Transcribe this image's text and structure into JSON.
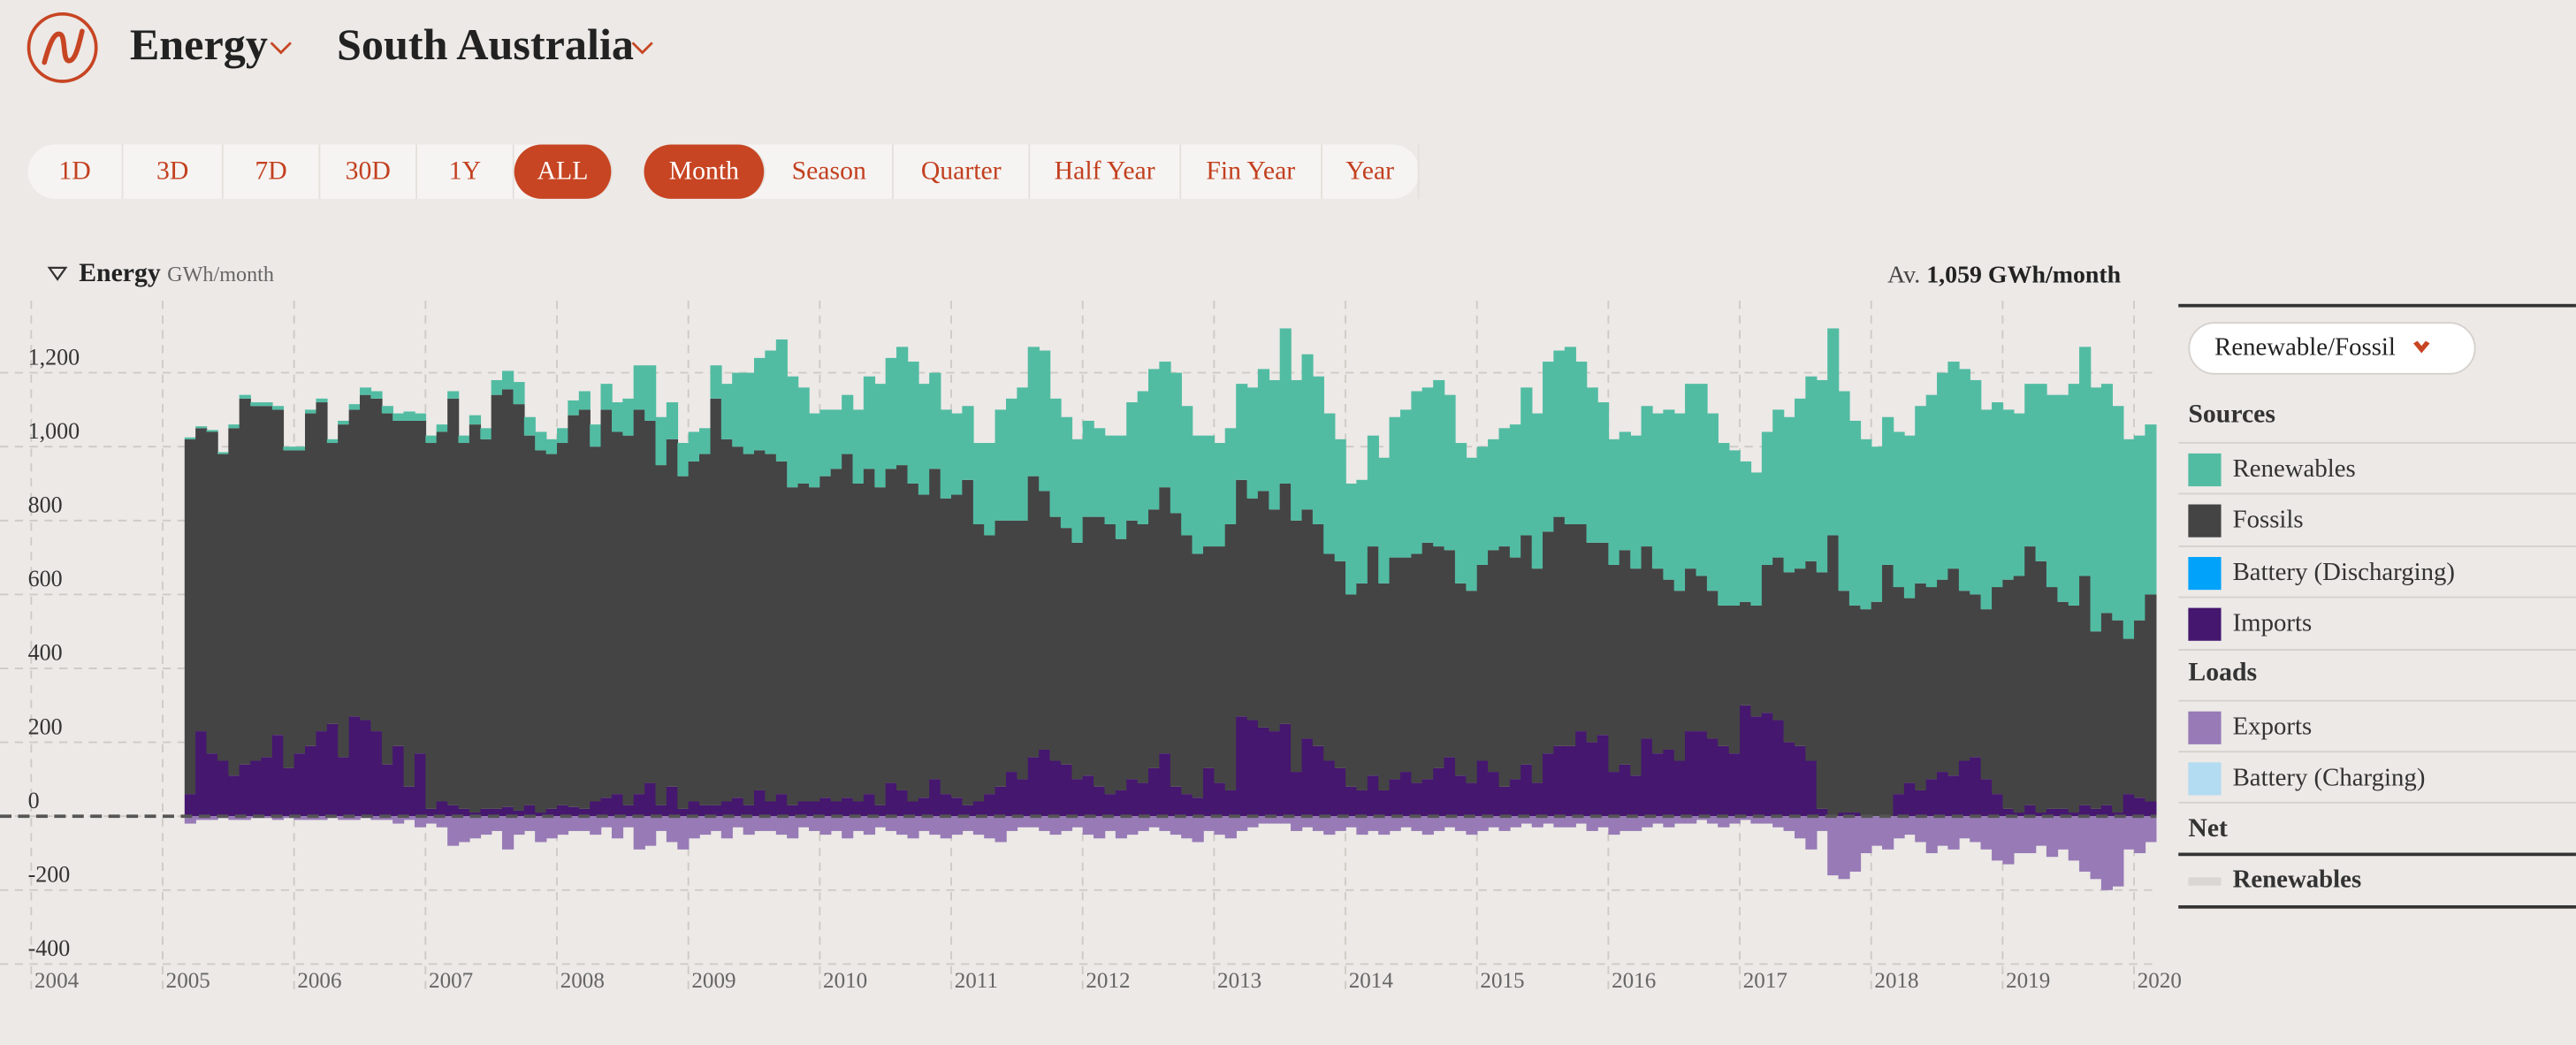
{
  "header": {
    "menu": "Energy",
    "region": "South Australia"
  },
  "ranges": {
    "options": [
      "1D",
      "3D",
      "7D",
      "30D",
      "1Y",
      "ALL"
    ],
    "active": "ALL"
  },
  "intervals": {
    "options": [
      "Month",
      "Season",
      "Quarter",
      "Half Year",
      "Fin Year",
      "Year"
    ],
    "active": "Month"
  },
  "chart_data": {
    "type": "bar",
    "stacked": true,
    "title": "Energy",
    "unit": "GWh/month",
    "average_label": "Av.",
    "average": "1,059 GWh/month",
    "x": [
      2005.167,
      2005.25,
      2005.333,
      2005.417,
      2005.5,
      2005.583,
      2005.667,
      2005.75,
      2005.833,
      2005.917,
      2006,
      2006.083,
      2006.167,
      2006.25,
      2006.333,
      2006.417,
      2006.5,
      2006.583,
      2006.667,
      2006.75,
      2006.833,
      2006.917,
      2007,
      2007.083,
      2007.167,
      2007.25,
      2007.333,
      2007.417,
      2007.5,
      2007.583,
      2007.667,
      2007.75,
      2007.833,
      2007.917,
      2008,
      2008.083,
      2008.167,
      2008.25,
      2008.333,
      2008.417,
      2008.5,
      2008.583,
      2008.667,
      2008.75,
      2008.833,
      2008.917,
      2009,
      2009.083,
      2009.167,
      2009.25,
      2009.333,
      2009.417,
      2009.5,
      2009.583,
      2009.667,
      2009.75,
      2009.833,
      2009.917,
      2010,
      2010.083,
      2010.167,
      2010.25,
      2010.333,
      2010.417,
      2010.5,
      2010.583,
      2010.667,
      2010.75,
      2010.833,
      2010.917,
      2011,
      2011.083,
      2011.167,
      2011.25,
      2011.333,
      2011.417,
      2011.5,
      2011.583,
      2011.667,
      2011.75,
      2011.833,
      2011.917,
      2012,
      2012.083,
      2012.167,
      2012.25,
      2012.333,
      2012.417,
      2012.5,
      2012.583,
      2012.667,
      2012.75,
      2012.833,
      2012.917,
      2013,
      2013.083,
      2013.167,
      2013.25,
      2013.333,
      2013.417,
      2013.5,
      2013.583,
      2013.667,
      2013.75,
      2013.833,
      2013.917,
      2014,
      2014.083,
      2014.167,
      2014.25,
      2014.333,
      2014.417,
      2014.5,
      2014.583,
      2014.667,
      2014.75,
      2014.833,
      2014.917,
      2015,
      2015.083,
      2015.167,
      2015.25,
      2015.333,
      2015.417,
      2015.5,
      2015.583,
      2015.667,
      2015.75,
      2015.833,
      2015.917,
      2016,
      2016.083,
      2016.167,
      2016.25,
      2016.333,
      2016.417,
      2016.5,
      2016.583,
      2016.667,
      2016.75,
      2016.833,
      2016.917,
      2017,
      2017.083,
      2017.167,
      2017.25,
      2017.333,
      2017.417,
      2017.5,
      2017.583,
      2017.667,
      2017.75,
      2017.833,
      2017.917,
      2018,
      2018.083,
      2018.167,
      2018.25,
      2018.333,
      2018.417,
      2018.5,
      2018.583,
      2018.667,
      2018.75,
      2018.833,
      2018.917,
      2019,
      2019.083,
      2019.167,
      2019.25,
      2019.333,
      2019.417,
      2019.5,
      2019.583,
      2019.667,
      2019.75,
      2019.833,
      2019.917,
      2020,
      2020.083
    ],
    "xlim": [
      2003.99,
      2020.17
    ],
    "xticks": [
      2004,
      2005,
      2006,
      2007,
      2008,
      2009,
      2010,
      2011,
      2012,
      2013,
      2014,
      2015,
      2016,
      2017,
      2018,
      2019,
      2020
    ],
    "ylim": [
      -410,
      1395
    ],
    "yticks": [
      -400,
      -200,
      0,
      200,
      400,
      600,
      800,
      {
        "value": 1000,
        "label": "1,000"
      },
      {
        "value": 1200,
        "label": "1,200"
      }
    ],
    "grid": true,
    "series": [
      {
        "name": "Imports",
        "color": "#45176f",
        "values": [
          60,
          230,
          170,
          150,
          110,
          140,
          150,
          160,
          220,
          130,
          170,
          190,
          230,
          250,
          160,
          270,
          260,
          230,
          140,
          190,
          80,
          170,
          20,
          40,
          30,
          20,
          10,
          20,
          20,
          25,
          15,
          30,
          10,
          20,
          30,
          25,
          20,
          40,
          50,
          60,
          30,
          60,
          90,
          30,
          80,
          20,
          40,
          30,
          30,
          40,
          50,
          30,
          70,
          40,
          60,
          30,
          40,
          40,
          50,
          40,
          50,
          40,
          60,
          30,
          90,
          70,
          40,
          50,
          100,
          60,
          50,
          30,
          40,
          60,
          80,
          120,
          100,
          160,
          180,
          150,
          140,
          100,
          110,
          80,
          60,
          70,
          100,
          90,
          130,
          170,
          80,
          60,
          50,
          130,
          90,
          70,
          270,
          260,
          240,
          230,
          250,
          120,
          210,
          190,
          150,
          130,
          80,
          70,
          110,
          70,
          100,
          120,
          90,
          100,
          130,
          160,
          110,
          90,
          150,
          120,
          80,
          100,
          140,
          90,
          170,
          190,
          190,
          230,
          200,
          220,
          120,
          140,
          110,
          210,
          170,
          180,
          150,
          230,
          230,
          210,
          190,
          170,
          300,
          270,
          280,
          260,
          200,
          190,
          150,
          20,
          0,
          10,
          10,
          0,
          0,
          0,
          60,
          90,
          70,
          100,
          120,
          110,
          150,
          160,
          100,
          60,
          20,
          10,
          30,
          10,
          20,
          20,
          10,
          30,
          20,
          30,
          10,
          60,
          50,
          40
        ]
      },
      {
        "name": "Fossils",
        "color": "#444444",
        "values": [
          960,
          820,
          870,
          830,
          940,
          990,
          960,
          950,
          880,
          860,
          820,
          900,
          890,
          760,
          900,
          830,
          880,
          900,
          950,
          880,
          990,
          900,
          990,
          1000,
          1100,
          990,
          1050,
          1000,
          1120,
          1130,
          1100,
          1000,
          980,
          960,
          980,
          1060,
          1080,
          960,
          1050,
          980,
          1000,
          1040,
          980,
          920,
          940,
          900,
          920,
          950,
          1100,
          980,
          950,
          950,
          920,
          940,
          900,
          860,
          860,
          850,
          870,
          900,
          930,
          860,
          880,
          860,
          850,
          880,
          860,
          820,
          840,
          800,
          820,
          880,
          750,
          700,
          720,
          680,
          700,
          760,
          700,
          660,
          640,
          640,
          700,
          730,
          730,
          680,
          700,
          700,
          700,
          720,
          740,
          700,
          660,
          600,
          640,
          720,
          640,
          600,
          640,
          600,
          650,
          680,
          620,
          600,
          560,
          560,
          520,
          560,
          620,
          560,
          600,
          580,
          620,
          640,
          600,
          560,
          520,
          520,
          530,
          600,
          650,
          600,
          620,
          580,
          600,
          620,
          600,
          560,
          540,
          520,
          560,
          580,
          560,
          520,
          500,
          460,
          460,
          440,
          420,
          400,
          380,
          400,
          280,
          300,
          400,
          440,
          460,
          480,
          540,
          640,
          760,
          600,
          560,
          560,
          580,
          680,
          560,
          500,
          560,
          520,
          520,
          560,
          460,
          440,
          460,
          560,
          620,
          640,
          700,
          680,
          600,
          560,
          560,
          620,
          480,
          520,
          520,
          420,
          480,
          560
        ]
      },
      {
        "name": "Renewables",
        "color": "#52bca3",
        "values": [
          5,
          5,
          5,
          5,
          10,
          10,
          10,
          10,
          10,
          10,
          10,
          10,
          10,
          10,
          10,
          15,
          20,
          20,
          20,
          20,
          25,
          20,
          20,
          20,
          20,
          20,
          25,
          30,
          40,
          50,
          60,
          50,
          50,
          40,
          40,
          40,
          50,
          60,
          70,
          80,
          100,
          120,
          150,
          130,
          100,
          90,
          80,
          70,
          90,
          150,
          200,
          220,
          250,
          280,
          330,
          300,
          260,
          200,
          180,
          160,
          160,
          200,
          250,
          280,
          300,
          320,
          330,
          300,
          260,
          240,
          220,
          200,
          220,
          250,
          300,
          330,
          360,
          350,
          380,
          320,
          300,
          280,
          260,
          240,
          240,
          280,
          320,
          360,
          380,
          340,
          380,
          350,
          320,
          300,
          280,
          260,
          260,
          300,
          330,
          350,
          420,
          380,
          420,
          400,
          380,
          330,
          300,
          280,
          300,
          340,
          380,
          400,
          440,
          420,
          450,
          420,
          380,
          360,
          320,
          300,
          320,
          360,
          400,
          420,
          460,
          450,
          480,
          440,
          420,
          380,
          340,
          320,
          360,
          380,
          420,
          460,
          480,
          500,
          520,
          480,
          440,
          420,
          380,
          360,
          360,
          400,
          420,
          460,
          500,
          520,
          560,
          540,
          500,
          460,
          420,
          400,
          420,
          440,
          480,
          520,
          560,
          560,
          600,
          580,
          540,
          500,
          460,
          440,
          440,
          480,
          520,
          560,
          600,
          620,
          660,
          620,
          580,
          540,
          500,
          460
        ]
      },
      {
        "name": "Exports",
        "color": "#977ab6",
        "values": [
          -20,
          -10,
          -10,
          -5,
          -10,
          -10,
          -5,
          -5,
          -10,
          -5,
          -10,
          -10,
          -10,
          -5,
          -10,
          -10,
          -5,
          -10,
          -10,
          -20,
          -10,
          -30,
          -20,
          -30,
          -80,
          -70,
          -60,
          -50,
          -40,
          -90,
          -50,
          -40,
          -70,
          -60,
          -50,
          -40,
          -40,
          -50,
          -30,
          -60,
          -30,
          -90,
          -80,
          -40,
          -70,
          -90,
          -60,
          -50,
          -40,
          -60,
          -30,
          -50,
          -40,
          -40,
          -50,
          -60,
          -30,
          -40,
          -50,
          -40,
          -60,
          -40,
          -50,
          -30,
          -40,
          -50,
          -60,
          -40,
          -50,
          -60,
          -50,
          -40,
          -50,
          -60,
          -70,
          -40,
          -30,
          -30,
          -40,
          -50,
          -40,
          -30,
          -50,
          -60,
          -40,
          -60,
          -50,
          -40,
          -30,
          -40,
          -50,
          -60,
          -70,
          -40,
          -50,
          -60,
          -40,
          -30,
          -20,
          -20,
          -20,
          -40,
          -30,
          -40,
          -50,
          -40,
          -30,
          -50,
          -40,
          -50,
          -40,
          -30,
          -40,
          -50,
          -40,
          -30,
          -40,
          -50,
          -40,
          -30,
          -40,
          -30,
          -20,
          -30,
          -20,
          -30,
          -30,
          -20,
          -40,
          -30,
          -50,
          -40,
          -40,
          -30,
          -20,
          -30,
          -20,
          -20,
          -10,
          -20,
          -30,
          -20,
          -10,
          -20,
          -20,
          -30,
          -40,
          -60,
          -90,
          -40,
          -160,
          -170,
          -150,
          -100,
          -80,
          -90,
          -60,
          -50,
          -70,
          -100,
          -80,
          -90,
          -60,
          -70,
          -90,
          -120,
          -130,
          -100,
          -100,
          -80,
          -110,
          -90,
          -120,
          -150,
          -170,
          -200,
          -190,
          -90,
          -100,
          -70
        ]
      }
    ]
  },
  "panel": {
    "dropdown": "Renewable/Fossil",
    "sources_title": "Sources",
    "loads_title": "Loads",
    "net_title": "Net",
    "battery_discharging": {
      "name": "Battery (Discharging)",
      "color": "#00a2fa"
    },
    "battery_charging": {
      "name": "Battery (Charging)",
      "color": "#b3dbf1"
    },
    "net_item": {
      "name": "Renewables",
      "color": "#d9d6d3"
    }
  }
}
